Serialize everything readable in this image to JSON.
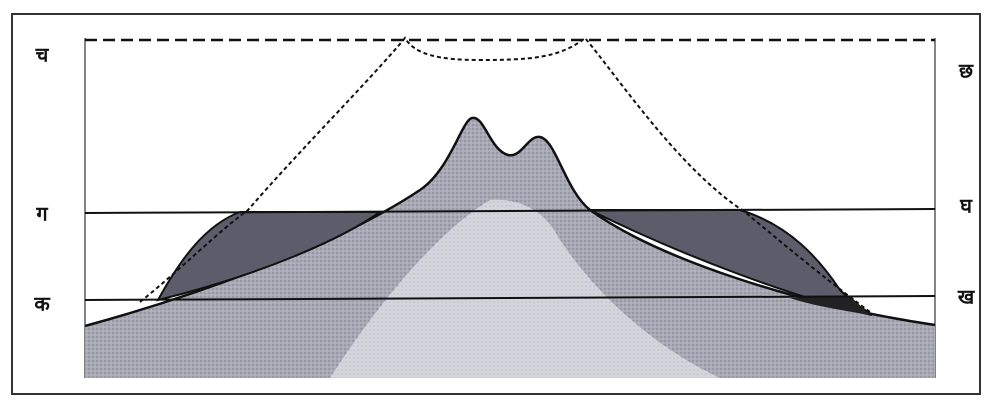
{
  "labels": {
    "left_top": "च",
    "right_top": "छ",
    "left_middle": "ग",
    "right_middle": "घ",
    "left_bottom": "क",
    "right_bottom": "ख"
  }
}
